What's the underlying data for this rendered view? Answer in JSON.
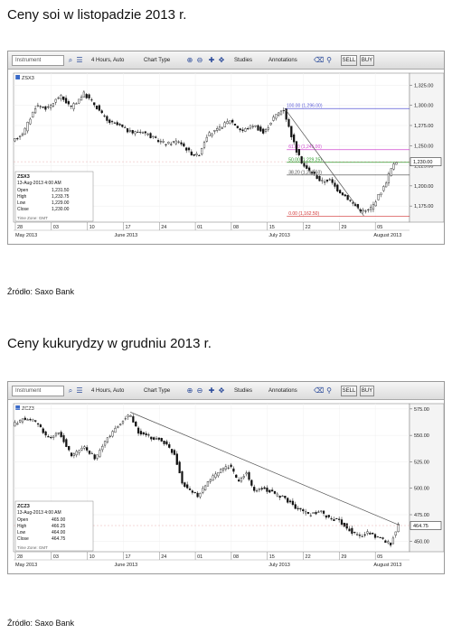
{
  "page": {
    "title_1": "Ceny soi w listopadzie 2013 r.",
    "source_1": "Źródło: Saxo Bank",
    "title_2": "Ceny kukurydzy  w grudniu 2013 r.",
    "source_2": "Źródło: Saxo Bank"
  },
  "toolbar": {
    "instrument_placeholder": "Instrument",
    "interval_label": "4 Hours, Auto",
    "chart_type_label": "Chart Type",
    "studies_label": "Studies",
    "annotations_label": "Annotations",
    "sell_label": "SELL",
    "buy_label": "BUY",
    "icons": [
      "search-icon",
      "list-icon",
      "zoom-in-icon",
      "zoom-out-icon",
      "crosshair-icon",
      "pan-icon",
      "eraser-icon",
      "pin-icon"
    ]
  },
  "chart_data": [
    {
      "type": "candlestick",
      "symbol": "ZSX3",
      "info_box": {
        "symbol": "ZSX3",
        "datetime": "13-Aug-2013 4:00 AM",
        "rows": [
          {
            "label": "Open",
            "value": "1,231.50"
          },
          {
            "label": "High",
            "value": "1,233.75"
          },
          {
            "label": "Low",
            "value": "1,229.00"
          },
          {
            "label": "Close",
            "value": "1,230.00"
          }
        ],
        "timezone": "Time Zone: GMT"
      },
      "ylim": [
        1155,
        1340
      ],
      "y_ticks": [
        {
          "value": 1325,
          "label": "1,325.00"
        },
        {
          "value": 1300,
          "label": "1,300.00"
        },
        {
          "value": 1275,
          "label": "1,275.00"
        },
        {
          "value": 1250,
          "label": "1,250.00"
        },
        {
          "value": 1225,
          "label": "1,225.00"
        },
        {
          "value": 1200,
          "label": "1,200.00"
        },
        {
          "value": 1175,
          "label": "1,175.00"
        }
      ],
      "x_day_ticks": [
        "28",
        "03",
        "10",
        "17",
        "24",
        "01",
        "08",
        "15",
        "22",
        "29",
        "05"
      ],
      "x_month_labels": [
        "May 2013",
        "June 2013",
        "July 2013",
        "August 2013"
      ],
      "last_price": {
        "value": 1230,
        "label": "1,230.00"
      },
      "fibonacci": [
        {
          "value": 1296,
          "label": "100.00 (1,296.00)",
          "color": "#5a5ad8"
        },
        {
          "value": 1245,
          "label": "61.80 (1,245.00)",
          "color": "#d04ad0"
        },
        {
          "value": 1229.25,
          "label": "50.00 (1,229.25)",
          "color": "#2a9a2a"
        },
        {
          "value": 1213.5,
          "label": "38.20 (1,213.50)",
          "color": "#444444"
        },
        {
          "value": 1162.5,
          "label": "0.00 (1,162.50)",
          "color": "#d03030"
        }
      ],
      "trendline": [
        [
          0.685,
          1296
        ],
        [
          0.885,
          1162.5
        ]
      ],
      "close_path": [
        [
          0.0,
          1254
        ],
        [
          0.03,
          1268
        ],
        [
          0.06,
          1300
        ],
        [
          0.09,
          1296
        ],
        [
          0.12,
          1312
        ],
        [
          0.15,
          1297
        ],
        [
          0.18,
          1315
        ],
        [
          0.21,
          1300
        ],
        [
          0.24,
          1280
        ],
        [
          0.27,
          1275
        ],
        [
          0.3,
          1266
        ],
        [
          0.33,
          1268
        ],
        [
          0.36,
          1258
        ],
        [
          0.39,
          1252
        ],
        [
          0.42,
          1256
        ],
        [
          0.45,
          1241
        ],
        [
          0.47,
          1237
        ],
        [
          0.49,
          1262
        ],
        [
          0.52,
          1270
        ],
        [
          0.55,
          1282
        ],
        [
          0.58,
          1268
        ],
        [
          0.61,
          1276
        ],
        [
          0.635,
          1265
        ],
        [
          0.66,
          1285
        ],
        [
          0.685,
          1296
        ],
        [
          0.7,
          1270
        ],
        [
          0.72,
          1240
        ],
        [
          0.74,
          1222
        ],
        [
          0.76,
          1216
        ],
        [
          0.78,
          1205
        ],
        [
          0.8,
          1208
        ],
        [
          0.82,
          1196
        ],
        [
          0.84,
          1188
        ],
        [
          0.86,
          1178
        ],
        [
          0.88,
          1170
        ],
        [
          0.895,
          1168
        ],
        [
          0.91,
          1175
        ],
        [
          0.925,
          1188
        ],
        [
          0.94,
          1200
        ],
        [
          0.955,
          1220
        ],
        [
          0.97,
          1230
        ]
      ]
    },
    {
      "type": "candlestick",
      "symbol": "ZCZ3",
      "info_box": {
        "symbol": "ZCZ3",
        "datetime": "13-Aug-2013 4:00 AM",
        "rows": [
          {
            "label": "Open",
            "value": "465.00"
          },
          {
            "label": "High",
            "value": "466.25"
          },
          {
            "label": "Low",
            "value": "464.00"
          },
          {
            "label": "Close",
            "value": "464.75"
          }
        ],
        "timezone": "Time Zone: GMT"
      },
      "ylim": [
        440,
        580
      ],
      "y_ticks": [
        {
          "value": 575,
          "label": "575.00"
        },
        {
          "value": 550,
          "label": "550.00"
        },
        {
          "value": 525,
          "label": "525.00"
        },
        {
          "value": 500,
          "label": "500.00"
        },
        {
          "value": 475,
          "label": "475.00"
        },
        {
          "value": 450,
          "label": "450.00"
        }
      ],
      "x_day_ticks": [
        "28",
        "03",
        "10",
        "17",
        "24",
        "01",
        "08",
        "15",
        "22",
        "29",
        "05"
      ],
      "x_month_labels": [
        "May 2013",
        "June 2013",
        "July 2013",
        "August 2013"
      ],
      "last_price": {
        "value": 464.75,
        "label": "464.75"
      },
      "trendline": [
        [
          0.295,
          572
        ],
        [
          0.975,
          465
        ]
      ],
      "close_path": [
        [
          0.0,
          560
        ],
        [
          0.03,
          566
        ],
        [
          0.06,
          562
        ],
        [
          0.09,
          548
        ],
        [
          0.12,
          552
        ],
        [
          0.15,
          530
        ],
        [
          0.18,
          540
        ],
        [
          0.21,
          528
        ],
        [
          0.24,
          548
        ],
        [
          0.27,
          560
        ],
        [
          0.295,
          570
        ],
        [
          0.32,
          552
        ],
        [
          0.35,
          548
        ],
        [
          0.38,
          545
        ],
        [
          0.41,
          532
        ],
        [
          0.43,
          505
        ],
        [
          0.45,
          498
        ],
        [
          0.47,
          492
        ],
        [
          0.49,
          505
        ],
        [
          0.52,
          515
        ],
        [
          0.55,
          522
        ],
        [
          0.57,
          505
        ],
        [
          0.59,
          515
        ],
        [
          0.61,
          498
        ],
        [
          0.635,
          500
        ],
        [
          0.66,
          495
        ],
        [
          0.69,
          490
        ],
        [
          0.71,
          484
        ],
        [
          0.73,
          478
        ],
        [
          0.75,
          475
        ],
        [
          0.78,
          477
        ],
        [
          0.8,
          472
        ],
        [
          0.82,
          470
        ],
        [
          0.84,
          465
        ],
        [
          0.86,
          458
        ],
        [
          0.88,
          455
        ],
        [
          0.9,
          458
        ],
        [
          0.92,
          454
        ],
        [
          0.94,
          451
        ],
        [
          0.955,
          446
        ],
        [
          0.965,
          458
        ],
        [
          0.975,
          465
        ]
      ]
    }
  ]
}
